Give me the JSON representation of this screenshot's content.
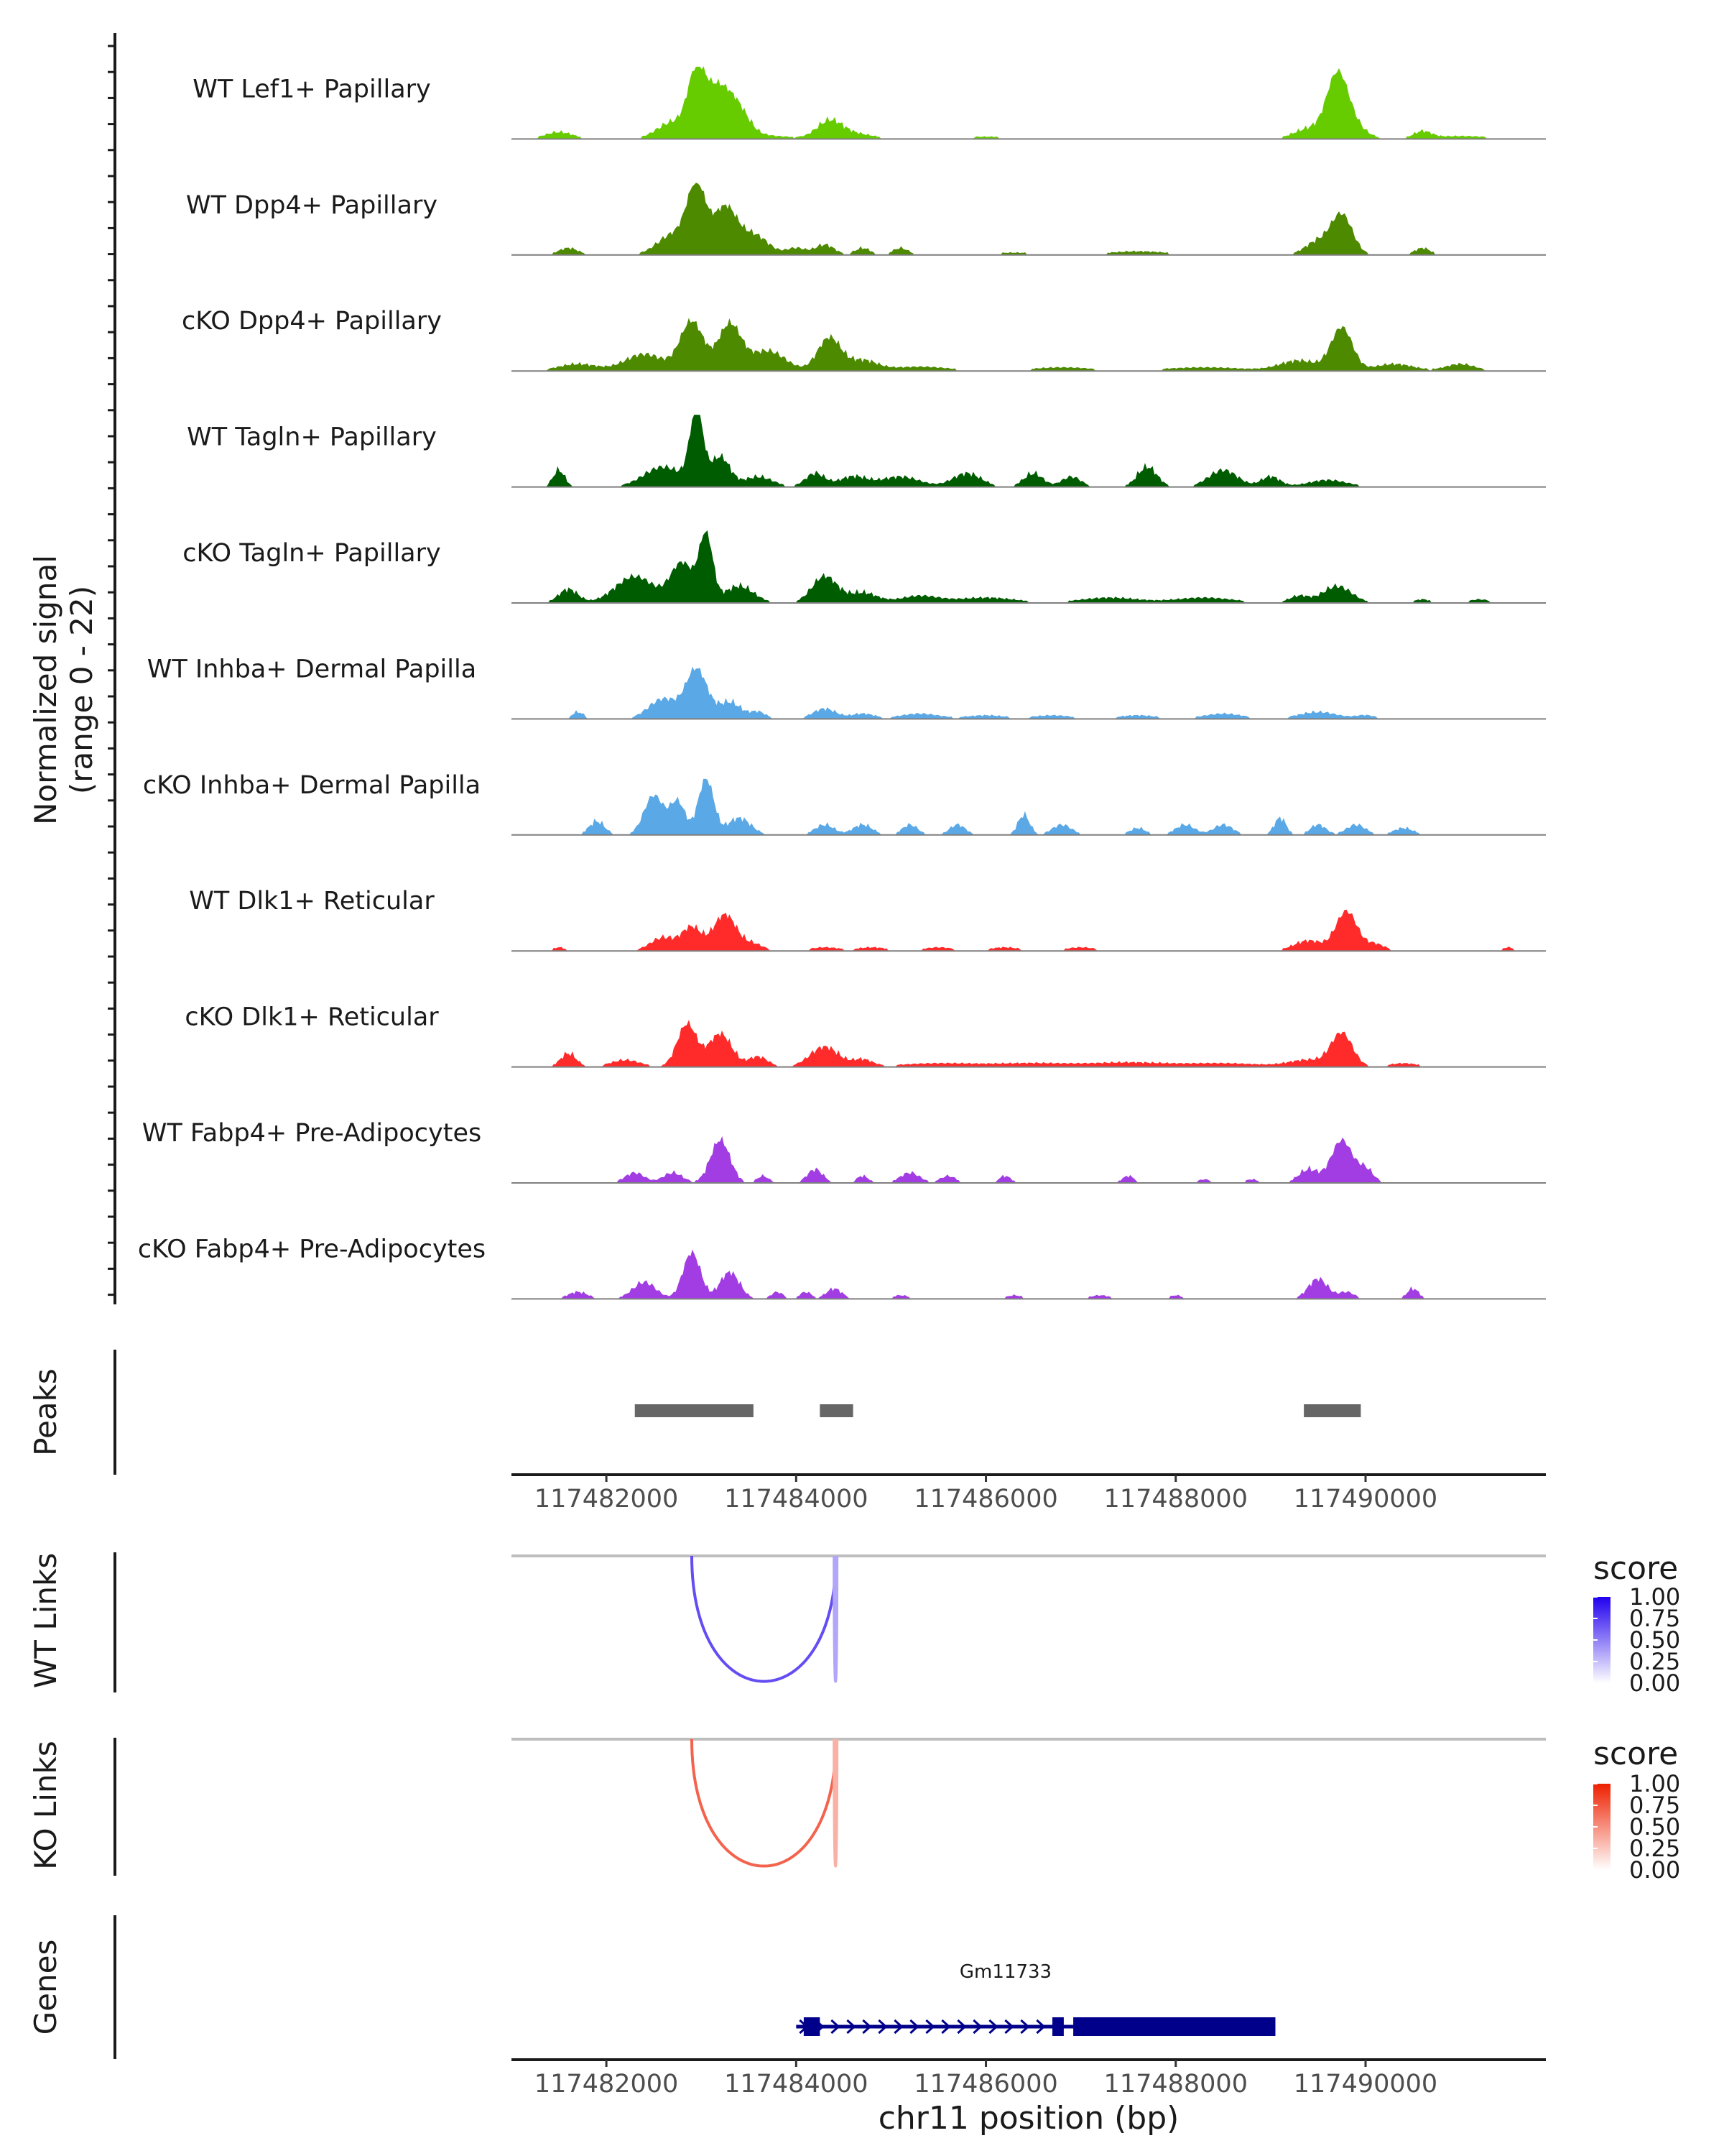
{
  "chart_data": {
    "type": "area",
    "title": "",
    "xlabel": "chr11 position (bp)",
    "xlim": [
      117481000,
      117491900
    ],
    "x_ticks": [
      "117482000",
      "117484000",
      "117486000",
      "117488000",
      "117490000"
    ],
    "x_tick_values": [
      117482000,
      117484000,
      117486000,
      117488000,
      117490000
    ],
    "coverage": {
      "ylabel_line1": "Normalized signal",
      "ylabel_line2": "(range 0 - 22)",
      "ylim": [
        0,
        22
      ],
      "tracks": [
        {
          "name": "WT Lef1+ Papillary",
          "color": "#66cc00",
          "peaks": [
            [
              117481500,
              140,
              2
            ],
            [
              117482700,
              160,
              5
            ],
            [
              117482950,
              90,
              19
            ],
            [
              117483150,
              110,
              12
            ],
            [
              117483350,
              130,
              10
            ],
            [
              117483600,
              300,
              1
            ],
            [
              117484350,
              130,
              5
            ],
            [
              117484600,
              200,
              1.5
            ],
            [
              117486000,
              300,
              0.6
            ],
            [
              117487500,
              400,
              0.5
            ],
            [
              117489400,
              150,
              3
            ],
            [
              117489700,
              110,
              18
            ],
            [
              117489850,
              140,
              4
            ],
            [
              117490600,
              90,
              2
            ],
            [
              117491000,
              300,
              0.8
            ]
          ]
        },
        {
          "name": "WT Dpp4+ Papillary",
          "color": "#4d8a00",
          "peaks": [
            [
              117481600,
              100,
              2
            ],
            [
              117482700,
              160,
              6
            ],
            [
              117482950,
              100,
              20
            ],
            [
              117483250,
              120,
              14
            ],
            [
              117483550,
              150,
              6
            ],
            [
              117484000,
              100,
              2
            ],
            [
              117484300,
              100,
              3
            ],
            [
              117484700,
              80,
              2
            ],
            [
              117485100,
              80,
              2
            ],
            [
              117486300,
              300,
              0.6
            ],
            [
              117487600,
              300,
              1
            ],
            [
              117489500,
              130,
              4
            ],
            [
              117489750,
              110,
              12
            ],
            [
              117490600,
              80,
              2
            ]
          ]
        },
        {
          "name": "cKO Dpp4+ Papillary",
          "color": "#4d8a00",
          "peaks": [
            [
              117481700,
              200,
              2
            ],
            [
              117482400,
              200,
              5
            ],
            [
              117482900,
              120,
              15
            ],
            [
              117483300,
              120,
              14
            ],
            [
              117483700,
              180,
              6
            ],
            [
              117484350,
              120,
              10
            ],
            [
              117484700,
              150,
              3
            ],
            [
              117485300,
              300,
              1.2
            ],
            [
              117486800,
              300,
              1
            ],
            [
              117488300,
              400,
              1
            ],
            [
              117489300,
              200,
              3
            ],
            [
              117489750,
              110,
              13
            ],
            [
              117490300,
              200,
              2
            ],
            [
              117491000,
              150,
              2
            ]
          ]
        },
        {
          "name": "WT Tagln+ Papillary",
          "color": "#005c00",
          "peaks": [
            [
              117481500,
              60,
              5
            ],
            [
              117482600,
              200,
              6
            ],
            [
              117482950,
              70,
              22
            ],
            [
              117483200,
              100,
              9
            ],
            [
              117483600,
              150,
              3
            ],
            [
              117484200,
              100,
              4
            ],
            [
              117484600,
              150,
              3
            ],
            [
              117485100,
              200,
              3
            ],
            [
              117485800,
              150,
              4
            ],
            [
              117486500,
              100,
              4
            ],
            [
              117486900,
              100,
              3
            ],
            [
              117487700,
              100,
              6
            ],
            [
              117488500,
              150,
              5
            ],
            [
              117489000,
              100,
              3
            ],
            [
              117489600,
              200,
              2
            ]
          ]
        },
        {
          "name": "cKO Tagln+ Papillary",
          "color": "#005c00",
          "peaks": [
            [
              117481600,
              100,
              4
            ],
            [
              117482300,
              200,
              8
            ],
            [
              117482800,
              120,
              12
            ],
            [
              117483050,
              70,
              20
            ],
            [
              117483400,
              150,
              5
            ],
            [
              117484300,
              130,
              8
            ],
            [
              117484700,
              150,
              3
            ],
            [
              117485300,
              200,
              2
            ],
            [
              117486000,
              300,
              1.5
            ],
            [
              117487300,
              300,
              1.5
            ],
            [
              117488300,
              300,
              1.5
            ],
            [
              117489300,
              100,
              2
            ],
            [
              117489700,
              150,
              5
            ],
            [
              117490600,
              80,
              1
            ],
            [
              117491200,
              100,
              1
            ]
          ]
        },
        {
          "name": "WT Inhba+ Dermal Papilla",
          "color": "#5aa8e6",
          "peaks": [
            [
              117481700,
              60,
              2
            ],
            [
              117482600,
              150,
              6
            ],
            [
              117482950,
              110,
              15
            ],
            [
              117483300,
              120,
              5
            ],
            [
              117483600,
              80,
              2
            ],
            [
              117484300,
              120,
              3
            ],
            [
              117484700,
              120,
              1.5
            ],
            [
              117485300,
              200,
              1.5
            ],
            [
              117486000,
              200,
              1
            ],
            [
              117486700,
              200,
              1
            ],
            [
              117487600,
              200,
              1
            ],
            [
              117488500,
              200,
              1.5
            ],
            [
              117489500,
              200,
              2
            ],
            [
              117490000,
              100,
              1
            ],
            [
              117491200,
              60,
              0.5
            ]
          ]
        },
        {
          "name": "cKO Inhba+ Dermal Papilla",
          "color": "#5aa8e6",
          "peaks": [
            [
              117481900,
              80,
              4
            ],
            [
              117482500,
              100,
              12
            ],
            [
              117482750,
              80,
              10
            ],
            [
              117483050,
              80,
              17
            ],
            [
              117483400,
              120,
              5
            ],
            [
              117484300,
              100,
              3
            ],
            [
              117484700,
              100,
              3
            ],
            [
              117485200,
              80,
              3
            ],
            [
              117485700,
              80,
              3
            ],
            [
              117486400,
              60,
              6
            ],
            [
              117486800,
              100,
              3
            ],
            [
              117487600,
              80,
              2
            ],
            [
              117488100,
              100,
              3
            ],
            [
              117488500,
              100,
              3
            ],
            [
              117489100,
              60,
              5
            ],
            [
              117489500,
              80,
              3
            ],
            [
              117489900,
              100,
              3
            ],
            [
              117490400,
              100,
              2
            ]
          ]
        },
        {
          "name": "WT Dlk1+ Reticular",
          "color": "#ff2b2b",
          "peaks": [
            [
              117481500,
              60,
              1
            ],
            [
              117482600,
              130,
              4
            ],
            [
              117482900,
              100,
              7
            ],
            [
              117483250,
              120,
              11
            ],
            [
              117483550,
              100,
              2
            ],
            [
              117484300,
              150,
              1
            ],
            [
              117484800,
              150,
              1
            ],
            [
              117485500,
              150,
              1
            ],
            [
              117486200,
              150,
              1
            ],
            [
              117487000,
              150,
              1
            ],
            [
              117489400,
              150,
              3
            ],
            [
              117489800,
              110,
              12
            ],
            [
              117490100,
              100,
              2
            ],
            [
              117491500,
              60,
              1
            ]
          ]
        },
        {
          "name": "cKO Dlk1+ Reticular",
          "color": "#ff2b2b",
          "peaks": [
            [
              117481600,
              80,
              4
            ],
            [
              117482200,
              150,
              2
            ],
            [
              117482850,
              100,
              13
            ],
            [
              117483200,
              120,
              10
            ],
            [
              117483600,
              100,
              3
            ],
            [
              117484300,
              150,
              6
            ],
            [
              117484700,
              100,
              2
            ],
            [
              117485500,
              400,
              1
            ],
            [
              117486500,
              400,
              1
            ],
            [
              117487500,
              400,
              1.2
            ],
            [
              117488500,
              400,
              1
            ],
            [
              117489400,
              200,
              2
            ],
            [
              117489750,
              110,
              10
            ],
            [
              117490400,
              150,
              1
            ],
            [
              117491500,
              60,
              0.5
            ]
          ]
        },
        {
          "name": "WT Fabp4+ Pre-Adipocytes",
          "color": "#a23de3",
          "peaks": [
            [
              117482300,
              100,
              3
            ],
            [
              117482700,
              100,
              3
            ],
            [
              117483200,
              100,
              13
            ],
            [
              117483650,
              60,
              2
            ],
            [
              117484200,
              80,
              4
            ],
            [
              117484700,
              60,
              2
            ],
            [
              117485200,
              100,
              3
            ],
            [
              117485600,
              80,
              2
            ],
            [
              117486200,
              60,
              2
            ],
            [
              117487500,
              60,
              2
            ],
            [
              117488300,
              60,
              1
            ],
            [
              117488800,
              60,
              1
            ],
            [
              117489400,
              100,
              4
            ],
            [
              117489750,
              110,
              13
            ],
            [
              117490000,
              80,
              4
            ]
          ]
        },
        {
          "name": "cKO Fabp4+ Pre-Adipocytes",
          "color": "#a23de3",
          "peaks": [
            [
              117481700,
              100,
              2
            ],
            [
              117482400,
              120,
              5
            ],
            [
              117482900,
              90,
              14
            ],
            [
              117483300,
              100,
              8
            ],
            [
              117483800,
              60,
              2
            ],
            [
              117484100,
              60,
              2
            ],
            [
              117484400,
              80,
              3
            ],
            [
              117485100,
              80,
              1
            ],
            [
              117486300,
              80,
              1
            ],
            [
              117487200,
              100,
              1
            ],
            [
              117488000,
              60,
              1
            ],
            [
              117489500,
              100,
              6
            ],
            [
              117489800,
              80,
              2
            ],
            [
              117490500,
              60,
              3
            ]
          ]
        }
      ]
    },
    "peaks_track": {
      "label": "Peaks",
      "color": "#666666",
      "regions": [
        [
          117482300,
          117483550
        ],
        [
          117484250,
          117484600
        ],
        [
          117489350,
          117489950
        ]
      ]
    },
    "links_tracks": [
      {
        "label": "WT Links",
        "legend_title": "score",
        "color_low": "#ffffff",
        "color_high": "#2000ee",
        "legend_ticks": [
          "1.00",
          "0.75",
          "0.50",
          "0.25",
          "0.00"
        ],
        "links": [
          {
            "start": 117482900,
            "end": 117484420,
            "score": 0.7
          },
          {
            "start": 117484400,
            "end": 117484430,
            "score": 0.35
          }
        ]
      },
      {
        "label": "KO Links",
        "legend_title": "score",
        "color_low": "#ffffff",
        "color_high": "#ee2000",
        "legend_ticks": [
          "1.00",
          "0.75",
          "0.50",
          "0.25",
          "0.00"
        ],
        "links": [
          {
            "start": 117482900,
            "end": 117484420,
            "score": 0.7
          },
          {
            "start": 117484400,
            "end": 117484430,
            "score": 0.35
          }
        ]
      }
    ],
    "genes_track": {
      "label": "Genes",
      "color": "#00008b",
      "gene_name": "Gm11733",
      "strand": "+",
      "gene_start": 117484000,
      "gene_end": 117489050,
      "exons": [
        [
          117484080,
          117484250
        ],
        [
          117486700,
          117486820
        ],
        [
          117486920,
          117489050
        ]
      ]
    }
  }
}
